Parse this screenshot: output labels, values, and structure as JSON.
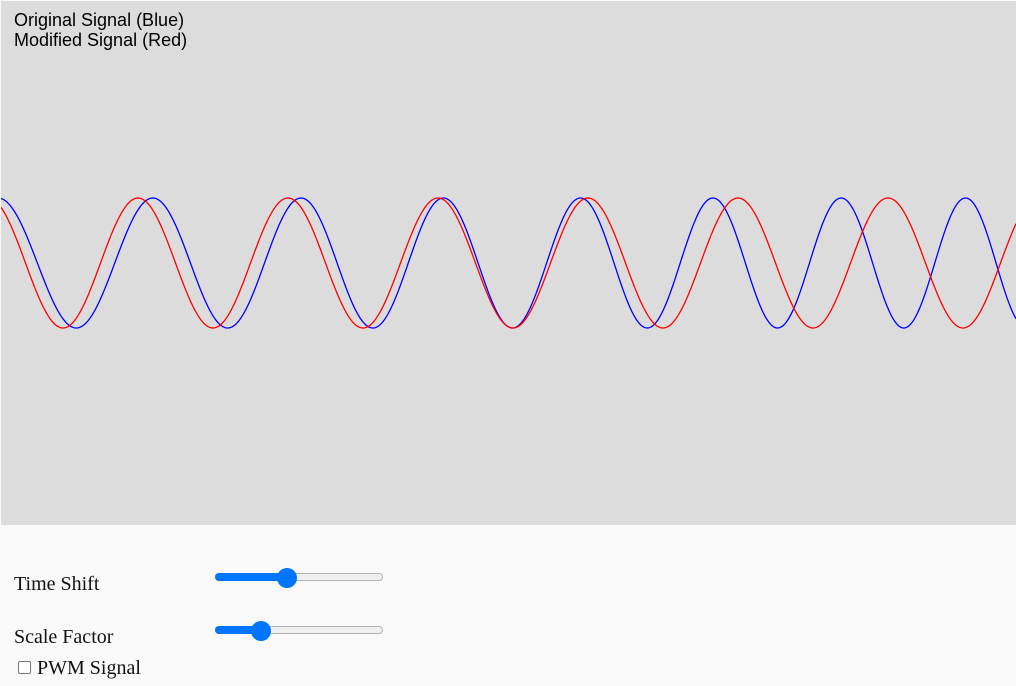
{
  "legend": {
    "original": "Original Signal (Blue)",
    "modified": "Modified Signal (Red)"
  },
  "controls": {
    "time_shift": {
      "label": "Time Shift",
      "value": 0.42
    },
    "scale_factor": {
      "label": "Scale Factor",
      "value": 0.24
    },
    "pwm": {
      "label": "PWM Signal",
      "checked": false
    }
  },
  "colors": {
    "original": "#0000ff",
    "modified": "#ff0000",
    "accent": "#0075ff",
    "canvas_bg": "#dcdcdc"
  }
}
